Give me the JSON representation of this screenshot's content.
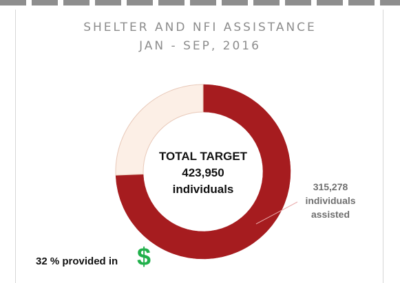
{
  "header": {
    "title_line1": "SHELTER AND NFI ASSISTANCE",
    "title_line2": "JAN - SEP, 2016"
  },
  "center": {
    "line1": "TOTAL TARGET",
    "line2": "423,950",
    "line3": "individuals"
  },
  "assisted": {
    "line1": "315,278",
    "line2": "individuals",
    "line3": "assisted"
  },
  "funding": {
    "text": "32 % provided in",
    "symbol": "$",
    "symbol_color": "#21b04b"
  },
  "colors": {
    "assisted": "#a61c1f",
    "remaining": "#fcefe6",
    "remaining_border": "#e8c8b8",
    "title": "#8c8c8c"
  },
  "chart_data": {
    "type": "pie",
    "title": "SHELTER AND NFI ASSISTANCE JAN - SEP, 2016",
    "total": 423950,
    "values": [
      315278,
      108672
    ],
    "series": [
      {
        "name": "individuals assisted",
        "value": 315278
      },
      {
        "name": "",
        "value": 108672
      }
    ]
  }
}
